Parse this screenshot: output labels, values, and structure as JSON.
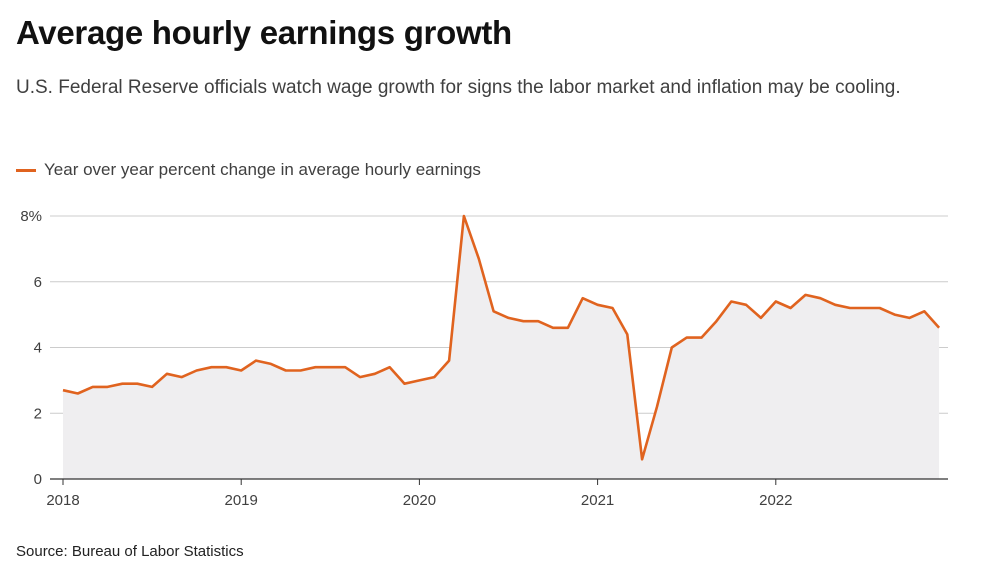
{
  "header": {
    "title": "Average hourly earnings growth",
    "subtitle": "U.S. Federal Reserve officials watch wage growth for signs the labor market and inflation may be cooling."
  },
  "footer": {
    "source": "Source: Bureau of Labor Statistics"
  },
  "colors": {
    "line": "#e0631f",
    "area": "#efeef0",
    "grid": "#cccccc",
    "axis": "#333333"
  },
  "chart_data": {
    "type": "area",
    "title": "Average hourly earnings growth",
    "subtitle": "U.S. Federal Reserve officials watch wage growth for signs the labor market and inflation may be cooling.",
    "xlabel": "",
    "ylabel": "",
    "ylim": [
      0,
      8
    ],
    "yticks": [
      0,
      2,
      4,
      6,
      8
    ],
    "ytick_labels": [
      "0",
      "2",
      "4",
      "6",
      "8%"
    ],
    "xticks": [
      "2018",
      "2019",
      "2020",
      "2021",
      "2022"
    ],
    "grid": "horizontal",
    "legend_position": "top-left",
    "series": [
      {
        "name": "Year over year percent change in average hourly earnings",
        "x": [
          "2018-01",
          "2018-02",
          "2018-03",
          "2018-04",
          "2018-05",
          "2018-06",
          "2018-07",
          "2018-08",
          "2018-09",
          "2018-10",
          "2018-11",
          "2018-12",
          "2019-01",
          "2019-02",
          "2019-03",
          "2019-04",
          "2019-05",
          "2019-06",
          "2019-07",
          "2019-08",
          "2019-09",
          "2019-10",
          "2019-11",
          "2019-12",
          "2020-01",
          "2020-02",
          "2020-03",
          "2020-04",
          "2020-05",
          "2020-06",
          "2020-07",
          "2020-08",
          "2020-09",
          "2020-10",
          "2020-11",
          "2020-12",
          "2021-01",
          "2021-02",
          "2021-03",
          "2021-04",
          "2021-05",
          "2021-06",
          "2021-07",
          "2021-08",
          "2021-09",
          "2021-10",
          "2021-11",
          "2021-12",
          "2022-01",
          "2022-02",
          "2022-03",
          "2022-04",
          "2022-05",
          "2022-06",
          "2022-07",
          "2022-08",
          "2022-09",
          "2022-10",
          "2022-11",
          "2022-12"
        ],
        "values": [
          2.7,
          2.6,
          2.8,
          2.8,
          2.9,
          2.9,
          2.8,
          3.2,
          3.1,
          3.3,
          3.4,
          3.4,
          3.3,
          3.6,
          3.5,
          3.3,
          3.3,
          3.4,
          3.4,
          3.4,
          3.1,
          3.2,
          3.4,
          2.9,
          3.0,
          3.1,
          3.6,
          8.0,
          6.7,
          5.1,
          4.9,
          4.8,
          4.8,
          4.6,
          4.6,
          5.5,
          5.3,
          5.2,
          4.4,
          0.6,
          2.2,
          4.0,
          4.3,
          4.3,
          4.8,
          5.4,
          5.3,
          4.9,
          5.4,
          5.2,
          5.6,
          5.5,
          5.3,
          5.2,
          5.2,
          5.2,
          5.0,
          4.9,
          5.1,
          4.6
        ]
      }
    ]
  }
}
